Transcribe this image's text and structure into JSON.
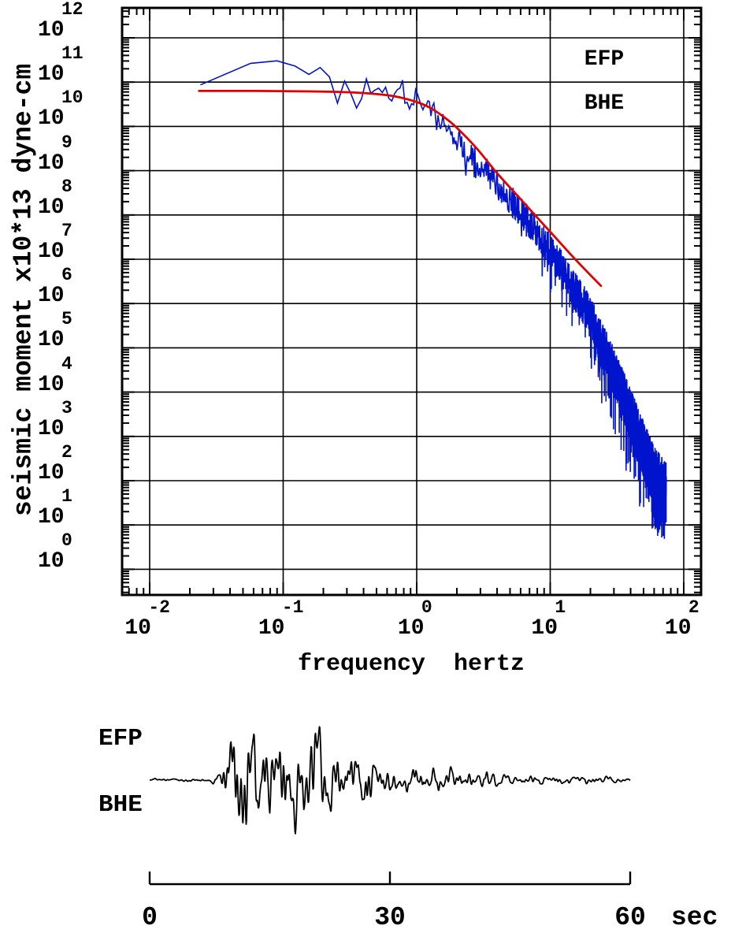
{
  "page": {
    "background": "#ffffff"
  },
  "chart_data": [
    {
      "type": "line",
      "name": "seismic-moment-spectrum",
      "title": "",
      "xlabel": "frequency  hertz",
      "ylabel": "seismic moment x10*13 dyne-cm",
      "x_scale": "log",
      "y_scale": "log",
      "grid": true,
      "tick_base": "10",
      "x_tick_exponents": [
        "-2",
        "-1",
        "0",
        "1",
        "2"
      ],
      "y_tick_exponents": [
        "12",
        "11",
        "10",
        "9",
        "8",
        "7",
        "6",
        "5",
        "4",
        "3",
        "2",
        "1",
        "0"
      ],
      "xlim_exp": [
        -2.21,
        2.13
      ],
      "ylim_exp": [
        -0.58,
        12.68
      ],
      "legend": [
        "EFP",
        "BHE"
      ],
      "legend_position": "top-right",
      "colors": {
        "observed": "#0013cd",
        "model": "#e00000",
        "axis": "#000000"
      },
      "series": [
        {
          "name": "observed-spectrum",
          "color": "#0013cd",
          "style": "jagged",
          "seed": 1337,
          "f_start_hz": 0.024,
          "f_end_hz": 74,
          "df_hz": 0.033,
          "trend_log10": [
            [
              -1.62,
              10.95
            ],
            [
              -1.52,
              11.15
            ],
            [
              -1.4,
              11.3
            ],
            [
              -1.25,
              11.4
            ],
            [
              -1.1,
              11.47
            ],
            [
              -1.0,
              11.5
            ],
            [
              -0.93,
              11.38
            ],
            [
              -0.86,
              11.3
            ],
            [
              -0.8,
              11.15
            ],
            [
              -0.74,
              11.32
            ],
            [
              -0.66,
              11.2
            ],
            [
              -0.6,
              10.55
            ],
            [
              -0.55,
              11.05
            ],
            [
              -0.5,
              10.8
            ],
            [
              -0.44,
              10.45
            ],
            [
              -0.38,
              11.0
            ],
            [
              -0.3,
              10.7
            ],
            [
              -0.24,
              10.95
            ],
            [
              -0.18,
              10.65
            ],
            [
              -0.12,
              10.9
            ],
            [
              -0.05,
              10.55
            ],
            [
              0.0,
              10.75
            ],
            [
              0.06,
              10.45
            ],
            [
              0.12,
              10.3
            ],
            [
              0.2,
              10.05
            ],
            [
              0.3,
              9.7
            ],
            [
              0.4,
              9.4
            ],
            [
              0.5,
              9.05
            ],
            [
              0.6,
              8.7
            ],
            [
              0.7,
              8.35
            ],
            [
              0.8,
              8.0
            ],
            [
              0.9,
              7.6
            ],
            [
              1.0,
              7.2
            ],
            [
              1.1,
              6.7
            ],
            [
              1.2,
              6.2
            ],
            [
              1.3,
              5.7
            ],
            [
              1.4,
              5.0
            ],
            [
              1.5,
              4.3
            ],
            [
              1.6,
              3.5
            ],
            [
              1.7,
              2.7
            ],
            [
              1.78,
              2.1
            ],
            [
              1.87,
              1.7
            ]
          ],
          "jitter_log10": [
            [
              -1.62,
              0.02
            ],
            [
              -1.3,
              0.03
            ],
            [
              -1.0,
              0.05
            ],
            [
              -0.8,
              0.08
            ],
            [
              -0.6,
              0.15
            ],
            [
              -0.4,
              0.18
            ],
            [
              -0.2,
              0.22
            ],
            [
              0.0,
              0.25
            ],
            [
              0.3,
              0.3
            ],
            [
              0.6,
              0.33
            ],
            [
              0.9,
              0.38
            ],
            [
              1.2,
              0.45
            ],
            [
              1.5,
              0.55
            ],
            [
              1.7,
              0.65
            ],
            [
              1.87,
              0.7
            ]
          ]
        },
        {
          "name": "model-fit",
          "color": "#e00000",
          "style": "smooth",
          "points_log10": [
            [
              -1.63,
              10.8
            ],
            [
              -1.2,
              10.8
            ],
            [
              -0.8,
              10.79
            ],
            [
              -0.5,
              10.77
            ],
            [
              -0.3,
              10.73
            ],
            [
              -0.15,
              10.67
            ],
            [
              0.0,
              10.55
            ],
            [
              0.1,
              10.42
            ],
            [
              0.2,
              10.22
            ],
            [
              0.3,
              9.97
            ],
            [
              0.45,
              9.5
            ],
            [
              0.6,
              8.95
            ],
            [
              0.75,
              8.45
            ],
            [
              0.9,
              7.95
            ],
            [
              1.0,
              7.62
            ],
            [
              1.15,
              7.12
            ],
            [
              1.25,
              6.8
            ],
            [
              1.38,
              6.4
            ]
          ]
        }
      ]
    },
    {
      "type": "waveform",
      "name": "seismogram",
      "labels": [
        "EFP",
        "BHE"
      ],
      "color": "#000000",
      "duration_sec": 60,
      "sample_dt_sec": 0.05,
      "seed": 424242,
      "time_tick_labels": [
        "0",
        "30",
        "60"
      ],
      "time_tick_values": [
        0,
        30,
        60
      ],
      "time_unit_label": "sec",
      "envelope": [
        [
          0,
          0.015
        ],
        [
          4,
          0.02
        ],
        [
          6,
          0.03
        ],
        [
          8,
          0.06
        ],
        [
          9,
          0.18
        ],
        [
          10,
          0.5
        ],
        [
          11,
          0.85
        ],
        [
          12,
          1.0
        ],
        [
          13,
          0.95
        ],
        [
          14,
          0.85
        ],
        [
          15,
          1.0
        ],
        [
          16,
          0.8
        ],
        [
          17,
          0.9
        ],
        [
          18,
          0.7
        ],
        [
          19,
          0.75
        ],
        [
          20,
          0.6
        ],
        [
          21,
          0.65
        ],
        [
          22,
          0.5
        ],
        [
          23,
          0.55
        ],
        [
          24,
          0.45
        ],
        [
          25,
          0.5
        ],
        [
          26,
          0.42
        ],
        [
          28,
          0.38
        ],
        [
          30,
          0.32
        ],
        [
          32,
          0.28
        ],
        [
          34,
          0.22
        ],
        [
          36,
          0.2
        ],
        [
          38,
          0.16
        ],
        [
          40,
          0.15
        ],
        [
          43,
          0.12
        ],
        [
          46,
          0.1
        ],
        [
          50,
          0.08
        ],
        [
          54,
          0.06
        ],
        [
          58,
          0.05
        ],
        [
          60,
          0.04
        ]
      ]
    }
  ]
}
